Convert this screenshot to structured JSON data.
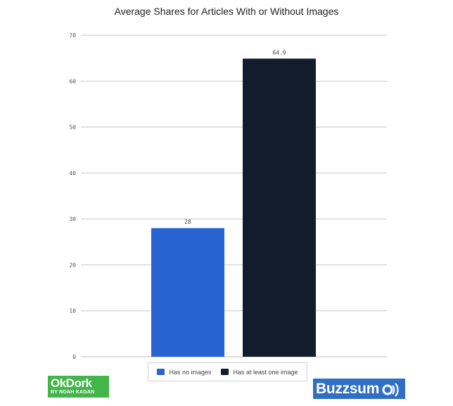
{
  "chart_data": {
    "type": "bar",
    "title": "Average Shares for Articles With or Without Images",
    "categories": [
      "Has no images",
      "Has at least one image"
    ],
    "values": [
      28,
      64.9
    ],
    "data_labels": [
      "28",
      "64.9"
    ],
    "colors": [
      "#2764d1",
      "#121c2c"
    ],
    "ylim": [
      0,
      70
    ],
    "yticks": [
      0,
      10,
      20,
      30,
      40,
      50,
      60,
      70
    ],
    "grid": true,
    "legend": "bottom-center",
    "xlabel": "",
    "ylabel": ""
  },
  "legend": {
    "items": [
      {
        "label": "Has no images",
        "color": "#2764d1"
      },
      {
        "label": "Has at least one image",
        "color": "#121c2c"
      }
    ]
  },
  "logos": {
    "okdork": {
      "name": "OkDork",
      "tagline": "BY NOAH KAGAN",
      "color": "#43b649"
    },
    "buzzsumo": {
      "name": "Buzzsum",
      "color": "#2f6fc5"
    }
  }
}
